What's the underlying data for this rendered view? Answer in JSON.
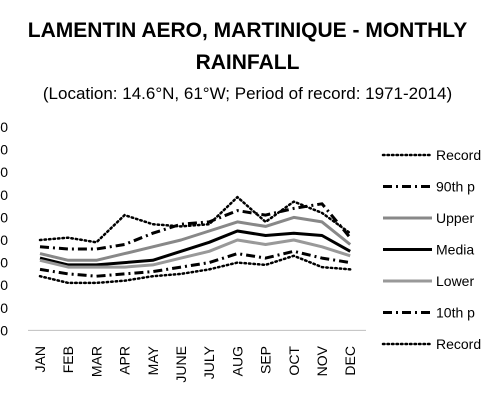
{
  "chart_data": {
    "type": "line",
    "title_line1": "LAMENTIN AERO, MARTINIQUE - MONTHLY",
    "title_line2": "RAINFALL",
    "subtitle": "(Location: 14.6°N, 61°W; Period of record: 1971-2014)",
    "categories": [
      "JAN",
      "FEB",
      "MAR",
      "APR",
      "MAY",
      "JUNE",
      "JULY",
      "AUG",
      "SEP",
      "OCT",
      "NOV",
      "DEC"
    ],
    "y_tick_labels": [
      "0",
      "0",
      "0",
      "0",
      "0",
      "0",
      "0",
      "0",
      "0",
      "0"
    ],
    "ylim": [
      0,
      9
    ],
    "grid": false,
    "legend_position": "right",
    "series": [
      {
        "name": "Record",
        "style": "dotted",
        "color": "#000000",
        "values": [
          4.0,
          4.1,
          3.9,
          5.1,
          4.7,
          4.6,
          4.7,
          5.9,
          4.8,
          5.7,
          5.2,
          4.3
        ]
      },
      {
        "name": "90th p",
        "style": "dashdot",
        "color": "#000000",
        "values": [
          3.7,
          3.6,
          3.6,
          3.8,
          4.3,
          4.7,
          4.8,
          5.3,
          5.1,
          5.4,
          5.6,
          4.1
        ]
      },
      {
        "name": "Upper",
        "style": "solid",
        "color": "#888888",
        "values": [
          3.4,
          3.1,
          3.1,
          3.4,
          3.7,
          4.0,
          4.4,
          4.8,
          4.6,
          5.0,
          4.8,
          3.8
        ]
      },
      {
        "name": "Media",
        "style": "solid",
        "color": "#000000",
        "values": [
          3.2,
          2.9,
          2.9,
          3.0,
          3.1,
          3.5,
          3.9,
          4.4,
          4.2,
          4.3,
          4.2,
          3.5
        ]
      },
      {
        "name": "Lower",
        "style": "solid",
        "color": "#999999",
        "values": [
          3.1,
          2.8,
          2.8,
          2.8,
          2.9,
          3.2,
          3.5,
          4.0,
          3.8,
          4.0,
          3.7,
          3.3
        ]
      },
      {
        "name": "10th p",
        "style": "dashdot",
        "color": "#000000",
        "values": [
          2.7,
          2.5,
          2.4,
          2.5,
          2.6,
          2.8,
          3.0,
          3.4,
          3.2,
          3.5,
          3.2,
          3.0
        ]
      },
      {
        "name": "Record",
        "style": "dotted",
        "color": "#000000",
        "values": [
          2.4,
          2.1,
          2.1,
          2.2,
          2.4,
          2.5,
          2.7,
          3.0,
          2.9,
          3.3,
          2.8,
          2.7
        ]
      }
    ]
  }
}
